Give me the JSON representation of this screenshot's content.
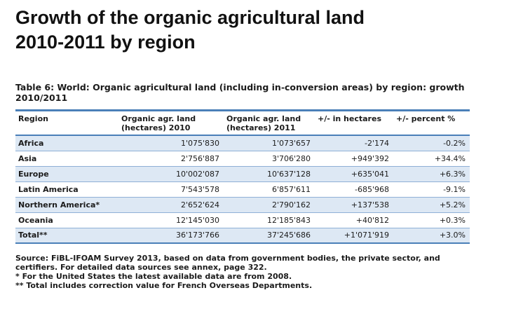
{
  "slide": {
    "title_line1": "Growth of the organic agricultural land",
    "title_line2": "2010-2011 by region"
  },
  "table": {
    "caption": "Table 6: World: Organic agricultural land (including in-conversion areas) by region: growth 2010/2011",
    "headers": [
      "Region",
      "Organic agr. land (hectares) 2010",
      "Organic agr. land (hectares) 2011",
      "+/- in hectares",
      "+/- percent %"
    ],
    "rows": [
      [
        "Africa",
        "1'075'830",
        "1'073'657",
        "-2'174",
        "-0.2%"
      ],
      [
        "Asia",
        "2'756'887",
        "3'706'280",
        "+949'392",
        "+34.4%"
      ],
      [
        "Europe",
        "10'002'087",
        "10'637'128",
        "+635'041",
        "+6.3%"
      ],
      [
        "Latin America",
        "7'543'578",
        "6'857'611",
        "-685'968",
        "-9.1%"
      ],
      [
        "Northern America*",
        "2'652'624",
        "2'790'162",
        "+137'538",
        "+5.2%"
      ],
      [
        "Oceania",
        "12'145'030",
        "12'185'843",
        "+40'812",
        "+0.3%"
      ],
      [
        "Total**",
        "36'173'766",
        "37'245'686",
        "+1'071'919",
        "+3.0%"
      ]
    ]
  },
  "notes": {
    "source": "Source: FiBL-IFOAM Survey 2013, based on data from government bodies, the private sector, and certifiers. For detailed data sources see annex, page 322.",
    "footnote1": "* For the United States the latest available data are from 2008.",
    "footnote2": "** Total includes correction value for French Overseas Departments."
  },
  "colors": {
    "rule": "#4a7fb8",
    "shade": "#dde8f4"
  }
}
